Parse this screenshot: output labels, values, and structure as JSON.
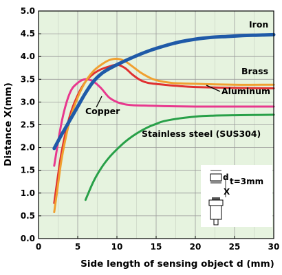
{
  "chart_data": {
    "type": "line",
    "xlabel": "Side length of sensing object d (mm)",
    "ylabel": "Distance X(mm)",
    "xlim": [
      0,
      30
    ],
    "ylim": [
      0,
      5.0
    ],
    "x_ticks": [
      "0",
      "5",
      "10",
      "15",
      "20",
      "25",
      "30"
    ],
    "y_ticks": [
      "0.0",
      "0.5",
      "1.0",
      "1.5",
      "2.0",
      "2.5",
      "3.0",
      "3.5",
      "4.0",
      "4.5",
      "5.0"
    ],
    "grid": true,
    "background": "#e6f3df",
    "series": [
      {
        "name": "Iron",
        "color": "#1f5aa8",
        "x": [
          2,
          3,
          4,
          5,
          6,
          7,
          8,
          9,
          10,
          12,
          14,
          16,
          18,
          20,
          22,
          24,
          26,
          28,
          30
        ],
        "y": [
          1.98,
          2.3,
          2.6,
          2.9,
          3.2,
          3.45,
          3.62,
          3.73,
          3.82,
          3.98,
          4.12,
          4.23,
          4.32,
          4.38,
          4.42,
          4.44,
          4.46,
          4.47,
          4.48
        ]
      },
      {
        "name": "Brass",
        "color": "#f0a030",
        "x": [
          2,
          2.5,
          3,
          4,
          5,
          6,
          7,
          8,
          9,
          10,
          11,
          12,
          13,
          14,
          15,
          17,
          20,
          25,
          30
        ],
        "y": [
          0.58,
          1.2,
          1.8,
          2.6,
          3.1,
          3.45,
          3.68,
          3.82,
          3.92,
          3.95,
          3.9,
          3.78,
          3.65,
          3.55,
          3.48,
          3.42,
          3.4,
          3.38,
          3.38
        ]
      },
      {
        "name": "Aluminum",
        "color": "#e03030",
        "x": [
          2,
          2.5,
          3,
          4,
          5,
          6,
          7,
          8,
          9,
          10,
          11,
          12,
          13,
          14,
          16,
          18,
          20,
          25,
          30
        ],
        "y": [
          0.78,
          1.4,
          1.95,
          2.7,
          3.15,
          3.45,
          3.62,
          3.72,
          3.78,
          3.82,
          3.75,
          3.6,
          3.48,
          3.42,
          3.38,
          3.35,
          3.33,
          3.31,
          3.3
        ]
      },
      {
        "name": "Copper",
        "color": "#e8388e",
        "x": [
          2,
          3,
          4,
          5,
          6,
          7,
          8,
          9,
          10,
          11,
          12,
          14,
          16,
          20,
          25,
          30
        ],
        "y": [
          1.6,
          2.6,
          3.2,
          3.42,
          3.5,
          3.45,
          3.3,
          3.1,
          3.0,
          2.95,
          2.93,
          2.92,
          2.91,
          2.9,
          2.9,
          2.9
        ]
      },
      {
        "name": "Stainless steel (SUS304)",
        "color": "#28a048",
        "x": [
          6,
          7,
          8,
          9,
          10,
          11,
          12,
          13,
          14,
          15,
          16,
          18,
          20,
          22,
          25,
          30
        ],
        "y": [
          0.85,
          1.25,
          1.55,
          1.78,
          1.96,
          2.12,
          2.25,
          2.36,
          2.45,
          2.52,
          2.58,
          2.64,
          2.68,
          2.7,
          2.71,
          2.72
        ]
      }
    ],
    "sensor_diagram": {
      "d_label": "d",
      "t_label": "t=3mm",
      "x_label": "X"
    }
  }
}
